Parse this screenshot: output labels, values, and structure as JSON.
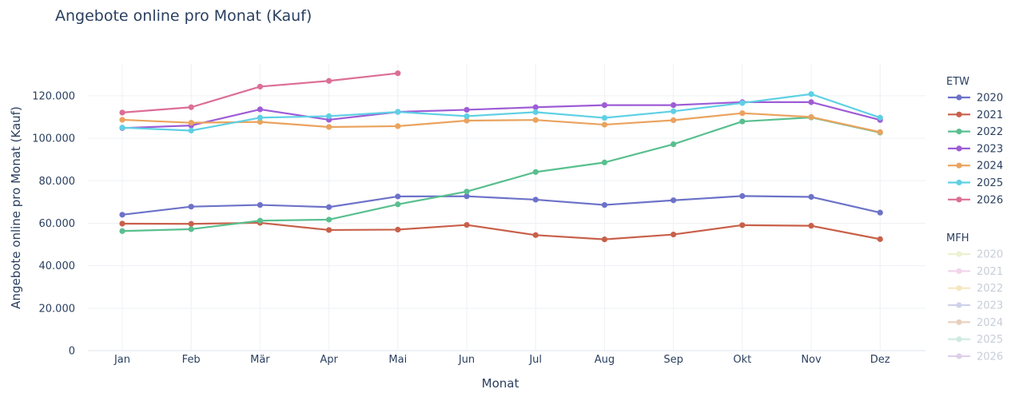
{
  "chart_data": {
    "type": "line",
    "title": "Angebote online pro Monat (Kauf)",
    "xlabel": "Monat",
    "ylabel": "Angebote online pro Monat (Kauf)",
    "ylim": [
      0,
      135000
    ],
    "yticks": [
      0,
      20000,
      40000,
      60000,
      80000,
      100000,
      120000
    ],
    "ytick_labels": [
      "0",
      "20.000",
      "40.000",
      "60.000",
      "80.000",
      "100.000",
      "120.000"
    ],
    "grid": true,
    "legend_placement": "right",
    "categories": [
      "Jan",
      "Feb",
      "Mär",
      "Apr",
      "Mai",
      "Jun",
      "Jul",
      "Aug",
      "Sep",
      "Okt",
      "Nov",
      "Dez"
    ],
    "legend_groups": [
      {
        "title": "ETW",
        "series": [
          {
            "name": "2020",
            "color": "#6c72c8",
            "values": [
              64000,
              67800,
              68600,
              67600,
              72600,
              72700,
              71100,
              68600,
              70800,
              72800,
              72400,
              65000
            ]
          },
          {
            "name": "2021",
            "color": "#c8604a",
            "values": [
              59800,
              59700,
              60200,
              56800,
              57000,
              59200,
              54400,
              52400,
              54700,
              59100,
              58800,
              52500
            ]
          },
          {
            "name": "2022",
            "color": "#59bf8f",
            "values": [
              56300,
              57200,
              61200,
              61700,
              68900,
              74900,
              84100,
              88600,
              97200,
              107900,
              109800,
              102700
            ]
          },
          {
            "name": "2023",
            "color": "#9e5cd6",
            "values": [
              104800,
              106000,
              113600,
              108700,
              112400,
              113400,
              114600,
              115600,
              115600,
              117000,
              117000,
              108600
            ]
          },
          {
            "name": "2024",
            "color": "#eaa35e",
            "values": [
              108700,
              107300,
              107700,
              105300,
              105700,
              108300,
              108600,
              106400,
              108500,
              111800,
              110000,
              102900
            ]
          },
          {
            "name": "2025",
            "color": "#5ed0e4",
            "values": [
              105000,
              103600,
              109700,
              110400,
              112400,
              110400,
              112300,
              109600,
              112700,
              116600,
              120800,
              109700
            ]
          },
          {
            "name": "2026",
            "color": "#dc6e96",
            "values": [
              112100,
              114600,
              124300,
              127000,
              130600
            ]
          }
        ]
      },
      {
        "title": "MFH",
        "inactive": true,
        "series": [
          {
            "name": "2020",
            "color": "#dde8a8"
          },
          {
            "name": "2021",
            "color": "#e8b4dc"
          },
          {
            "name": "2022",
            "color": "#f2d08a"
          },
          {
            "name": "2023",
            "color": "#a8addc"
          },
          {
            "name": "2024",
            "color": "#d8a888"
          },
          {
            "name": "2025",
            "color": "#a8dcc8"
          },
          {
            "name": "2026",
            "color": "#c8a8dc"
          }
        ]
      }
    ]
  }
}
